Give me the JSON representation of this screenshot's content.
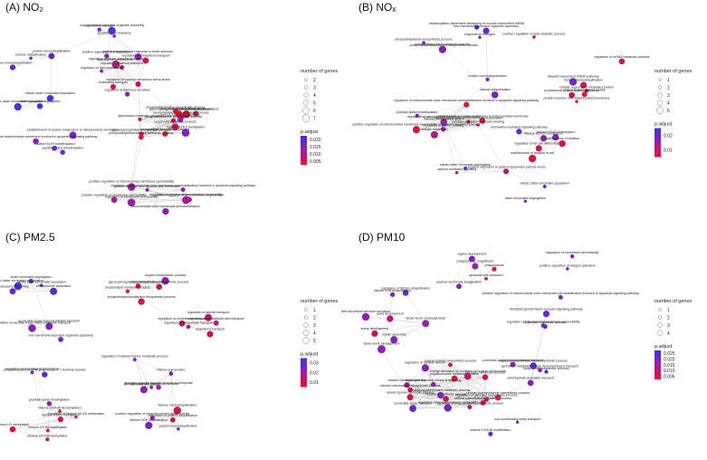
{
  "panels": [
    {
      "id": "A",
      "title": "(A) NO₂",
      "legend": {
        "size_title": "number of genes",
        "size_values": [
          "2",
          "3",
          "4",
          "5",
          "6",
          "7"
        ],
        "color_title": "p.adjust",
        "color_ticks": [
          "0.020",
          "0.015",
          "0.010",
          "0.005"
        ]
      },
      "nodes": [
        {
          "label": "apoptotic cell clearance",
          "c": "#c0185a"
        },
        {
          "label": "response to estrogen",
          "c": "#7b2bd6"
        },
        {
          "label": "non-membrane-bounded organelle assembly",
          "c": "#4830e0"
        },
        {
          "label": "positive regulation of response to biotic stimulus",
          "c": "#9020c0"
        },
        {
          "label": "positive regulation of viral process",
          "c": "#a01bb0"
        },
        {
          "label": "regulation of innate immune response",
          "c": "#c8185a"
        },
        {
          "label": "regulation of steroid transport",
          "c": "#c01865"
        },
        {
          "label": "regulation of lipid localization",
          "c": "#a81a8a"
        },
        {
          "label": "regulation of hormone secretion",
          "c": "#8a22b8"
        },
        {
          "label": "regulation of cholesterol transport",
          "c": "#c81560"
        },
        {
          "label": "regulation of plasma membrane sterol levels",
          "c": "#d0124e"
        },
        {
          "label": "regulation of endocytosis",
          "c": "#9a1ea0"
        },
        {
          "label": "cholesterol transport",
          "c": "#c8155c"
        },
        {
          "label": "protein monoubiquitination",
          "c": "#6228d0"
        },
        {
          "label": "histone monoubiquitination",
          "c": "#7224c8"
        },
        {
          "label": "histone ubiquitination",
          "c": "#5a2ad8"
        },
        {
          "label": "sister chromatid segregation",
          "c": "#3a36e2"
        },
        {
          "label": "mitotic sister chromatid segregation",
          "c": "#4232e0"
        },
        {
          "label": "mitotic sister chromatid separation",
          "c": "#4a30dc"
        },
        {
          "label": "phosphatidylserine metabolic process",
          "c": "#e0103a"
        },
        {
          "label": "glycerophospholipid biosynthetic process",
          "c": "#e8102e"
        },
        {
          "label": "phospholipid metabolic process",
          "c": "#d81440"
        },
        {
          "label": "glycerolipid metabolic process",
          "c": "#e00f36"
        },
        {
          "label": "phosphatidylcholine metabolic process",
          "c": "#e41032"
        },
        {
          "label": "phosphatidylserine biosynthetic process",
          "c": "#d4124a"
        },
        {
          "label": "phosphatidylcholine biosynthetic process",
          "c": "#dc1240"
        },
        {
          "label": "glycerophospholipid biosynthetic process",
          "c": "#e00e30"
        },
        {
          "label": "phospholipid biosynthetic process",
          "c": "#e41030"
        },
        {
          "label": "phosphatidylethanolamine metabolic process",
          "c": "#d0144c"
        },
        {
          "label": "isoprenoid metabolic process",
          "c": "#c8165a"
        },
        {
          "label": "histone H3-K9 methylation",
          "c": "#7a26c0"
        },
        {
          "label": "histone H3-K9 modification",
          "c": "#8822b8"
        },
        {
          "label": "peptidyl-lysine trimethylation",
          "c": "#6a2ac8"
        },
        {
          "label": "histone H3-K9 trimethylation",
          "c": "#5c2cd0"
        },
        {
          "label": "establishment of protein localization to mitochondrial membrane",
          "c": "#7424c4"
        },
        {
          "label": "protein insertion into mitochondrial membrane involved in apoptotic signaling pathway",
          "c": "#8a20b4"
        },
        {
          "label": "positive regulation of mitochondrial membrane permeability",
          "c": "#9a1ea8"
        },
        {
          "label": "regulation of mitochondrial membrane permeability",
          "c": "#a21c9c"
        },
        {
          "label": "regulation of membrane permeability",
          "c": "#9c1ea4"
        },
        {
          "label": "protein insertion into mitochondrial membrane",
          "c": "#8e20b0"
        },
        {
          "label": "positive regulation of membrane permeability",
          "c": "#a41c98"
        },
        {
          "label": "mitochondrial outer membrane permeabilization",
          "c": "#9020ac"
        },
        {
          "label": "regulation of mitochondrial outer membrane permeabilization involved in apoptotic signaling pathway",
          "c": "#8822b4"
        },
        {
          "label": "positive regulation of mitochondrion organization",
          "c": "#b01a8a"
        }
      ]
    },
    {
      "id": "B",
      "title": "(B) NOₓ",
      "legend": {
        "size_title": "number of genes",
        "size_values": [
          "1",
          "2",
          "3",
          "4",
          "5"
        ],
        "color_title": "p.adjust",
        "color_ticks": [
          "0.02",
          "0.01"
        ]
      },
      "nodes": [
        {
          "label": "phosphatidylethanolamine biosynthetic process",
          "c": "#6a28c8"
        },
        {
          "label": "phosphatidylserine biosynthetic process",
          "c": "#7a24c0"
        },
        {
          "label": "phosphatidylcholine metabolic process",
          "c": "#8422b8"
        },
        {
          "label": "response to estrogen",
          "c": "#5a2cd0"
        },
        {
          "label": "deadenylation-dependent decapping of nuclear-transcribed mRNA",
          "c": "#4a30dc"
        },
        {
          "label": "non-membrane-bounded organelle assembly",
          "c": "#6a28c8"
        },
        {
          "label": "positive regulation of lipid catabolic process",
          "c": "#c8165a"
        },
        {
          "label": "regulation of mRNA metabolic process",
          "c": "#c01866"
        },
        {
          "label": "histone ubiquitination",
          "c": "#7a24c0"
        },
        {
          "label": "protein monoubiquitination",
          "c": "#8a20b4"
        },
        {
          "label": "histone monoubiquitination",
          "c": "#d01450"
        },
        {
          "label": "ubiquitin-dependent ERAD pathway",
          "c": "#6a28c8"
        },
        {
          "label": "cellular response to misfolded protein",
          "c": "#d81244"
        },
        {
          "label": "response to misfolded protein",
          "c": "#e0103a"
        },
        {
          "label": "proteasomal protein catabolic process",
          "c": "#c8165a"
        },
        {
          "label": "protein insertion into mitochondrial membrane",
          "c": "#d81440"
        },
        {
          "label": "establishment of protein localization to mitochondrial membrane",
          "c": "#e0103a"
        },
        {
          "label": "regulation of mitochondrial outer membrane permeabilization involved in apoptotic signaling pathway",
          "c": "#e41032"
        },
        {
          "label": "positive regulation of mitochondrial membrane permeability involved in apoptotic process",
          "c": "#dc1240"
        },
        {
          "label": "regulation of mitochondrial membrane permeability",
          "c": "#e00f36"
        },
        {
          "label": "mitochondrial outer membrane permeabilization",
          "c": "#e81030"
        },
        {
          "label": "positive regulation of protein binding",
          "c": "#c0185e"
        },
        {
          "label": "regulation of protein binding",
          "c": "#b41a78"
        },
        {
          "label": "cellular respiration",
          "c": "#a81c8c"
        },
        {
          "label": "peptidyl-lysine trimethylation",
          "c": "#7a24c0"
        },
        {
          "label": "histone H3-K9 trimethylation",
          "c": "#6a28c8"
        },
        {
          "label": "histone H3-K9 methylation",
          "c": "#8422b8"
        },
        {
          "label": "histone H3-K9 modification",
          "c": "#9020ac"
        },
        {
          "label": "regulation of fat cell differentiation",
          "c": "#c8165a"
        },
        {
          "label": "maintenance of location",
          "c": "#d81444"
        },
        {
          "label": "maintenance of location in cell",
          "c": "#e0103a"
        },
        {
          "label": "chemokine-mediated signaling pathway",
          "c": "#5a2cd0"
        },
        {
          "label": "calcium-mediated signaling",
          "c": "#c8165a"
        },
        {
          "label": "negative regulation of plasma lipoprotein particle levels",
          "c": "#b81a70"
        },
        {
          "label": "mitotic sister chromatid segregation",
          "c": "#4a30dc"
        },
        {
          "label": "sister chromatid segregation",
          "c": "#5a2cd0"
        },
        {
          "label": "mitotic sister chromatid separation",
          "c": "#4232e0"
        }
      ]
    },
    {
      "id": "C",
      "title": "(C) PM2.5",
      "legend": {
        "size_title": "number of genes",
        "size_values": [
          "1",
          "2",
          "3",
          "4",
          "5"
        ],
        "color_title": "p.adjust",
        "color_ticks": [
          "0.03",
          "0.02",
          "0.01"
        ]
      },
      "nodes": [
        {
          "label": "mitotic sister chromatid segregation",
          "c": "#4232e0"
        },
        {
          "label": "sister chromatid segregation",
          "c": "#3a36e2"
        },
        {
          "label": "mitotic sister chromatid separation",
          "c": "#4a30dc"
        },
        {
          "label": "chromosome separation",
          "c": "#5a2cd0"
        },
        {
          "label": "proteasome assembly",
          "c": "#6a28c8"
        },
        {
          "label": "nucleotide-sugar transmembrane transport",
          "c": "#7a24c0"
        },
        {
          "label": "pyrimidine nucleotide-sugar transmembrane transport",
          "c": "#8422b8"
        },
        {
          "label": "non-membrane-bounded organelle assembly",
          "c": "#6a28c8"
        },
        {
          "label": "regulation of translational termination",
          "c": "#7a24c0"
        },
        {
          "label": "phosphorylation of RNA polymerase II C-terminal domain",
          "c": "#5a2cd0"
        },
        {
          "label": "heparin biosynthetic process",
          "c": "#9020ac"
        },
        {
          "label": "phosphatidylcholine biosynthetic process",
          "c": "#c8165a"
        },
        {
          "label": "phosphatidylethanolamine biosynthetic process",
          "c": "#d01450"
        },
        {
          "label": "glycerophospholipid biosynthetic process",
          "c": "#e0103a"
        },
        {
          "label": "phospholipid metabolic process",
          "c": "#e41032"
        },
        {
          "label": "regulation of steroid transport",
          "c": "#c01866"
        },
        {
          "label": "regulation of intracellular lipid transport",
          "c": "#b41a78"
        },
        {
          "label": "regulation of cholesterol transport",
          "c": "#c8165a"
        },
        {
          "label": "cholesterol transport",
          "c": "#d01450"
        },
        {
          "label": "regulation of intracellular transport",
          "c": "#a81c8c"
        },
        {
          "label": "regulation of cellular ketone metabolic process",
          "c": "#6a28c8"
        },
        {
          "label": "glucose catabolic process to pyruvate",
          "c": "#7a24c0"
        },
        {
          "label": "NADH regeneration",
          "c": "#8422b8"
        },
        {
          "label": "canonical glycolysis",
          "c": "#9020ac"
        },
        {
          "label": "glycolytic process through glucose-6-phosphate",
          "c": "#a01ea0"
        },
        {
          "label": "histone H2B ubiquitination",
          "c": "#7a24c0"
        },
        {
          "label": "protein monoubiquitination",
          "c": "#6a28c8"
        },
        {
          "label": "histone monoubiquitination",
          "c": "#d01450"
        },
        {
          "label": "regulation of protein ubiquitination",
          "c": "#c8165a"
        },
        {
          "label": "positive regulation of ubiquitin-protein ligase activity",
          "c": "#9020ac"
        },
        {
          "label": "regulation of histone H3-K9 methylation",
          "c": "#b41a78"
        },
        {
          "label": "histone H3-K9 methylation",
          "c": "#c8165a"
        },
        {
          "label": "histone H3-K9 modification",
          "c": "#d01450"
        },
        {
          "label": "peptidyl-lysine trimethylation",
          "c": "#8422b8"
        },
        {
          "label": "histone H3-K36 demethylation",
          "c": "#d81444"
        },
        {
          "label": "histone H4-K20 methylation",
          "c": "#c01866"
        },
        {
          "label": "histone H3 methylation",
          "c": "#e0103a"
        }
      ]
    },
    {
      "id": "D",
      "title": "(D) PM10",
      "legend": {
        "size_title": "number of genes",
        "size_values": [
          "1",
          "2",
          "3",
          "4"
        ],
        "color_title": "p.adjust",
        "color_ticks": [
          "0.025",
          "0.020",
          "0.015",
          "0.010",
          "0.005"
        ]
      },
      "nodes": [
        {
          "label": "phagocytosis",
          "c": "#c8165a"
        },
        {
          "label": "plasma membrane invagination",
          "c": "#9020ac"
        },
        {
          "label": "apoptotic cell clearance",
          "c": "#d01450"
        },
        {
          "label": "phagocytosis, engulfment",
          "c": "#a01ea0"
        },
        {
          "label": "vagina development",
          "c": "#7a24c0"
        },
        {
          "label": "regulation of histone ubiquitination",
          "c": "#6a28c8"
        },
        {
          "label": "histone H2B ubiquitination",
          "c": "#7a24c0"
        },
        {
          "label": "myelin assembly",
          "c": "#8422b8"
        },
        {
          "label": "internal ventral structure formation",
          "c": "#9020ac"
        },
        {
          "label": "facial nerve development",
          "c": "#8a20b4"
        },
        {
          "label": "facial nerve morphogenesis",
          "c": "#9c1ea4"
        },
        {
          "label": "artery development",
          "c": "#c8165a"
        },
        {
          "label": "aorta development",
          "c": "#b41a78"
        },
        {
          "label": "heparin metabolic process",
          "c": "#a81c8c"
        },
        {
          "label": "cellular carbohydrate biosynthetic process",
          "c": "#d81444"
        },
        {
          "label": "heparin biosynthetic process",
          "c": "#c01866"
        },
        {
          "label": "cellular carbohydrate metabolic process",
          "c": "#e0103a"
        },
        {
          "label": "polysaccharide metabolic process",
          "c": "#e41032"
        },
        {
          "label": "polysaccharide biosynthetic process",
          "c": "#e81030"
        },
        {
          "label": "cellular polysaccharide biosynthetic process",
          "c": "#d81444"
        },
        {
          "label": "cellular glucan metabolic process",
          "c": "#c8165a"
        },
        {
          "label": "glycogen metabolic process",
          "c": "#d01450"
        },
        {
          "label": "regulation of glycogen biosynthetic process",
          "c": "#b41a78"
        },
        {
          "label": "regulation of polysaccharide metabolic process",
          "c": "#a81c8c"
        },
        {
          "label": "regulation of nuclear division",
          "c": "#9020ac"
        },
        {
          "label": "regulation of protein kinase B signaling",
          "c": "#8422b8"
        },
        {
          "label": "regulation of gene expression, epigenetic",
          "c": "#7a24c0"
        },
        {
          "label": "nucleotide-sugar transport",
          "c": "#6a28c8"
        },
        {
          "label": "energy derivation by oxidation of organic compounds",
          "c": "#c01866"
        },
        {
          "label": "S-adenosylmethionine metabolic process",
          "c": "#7a24c0"
        },
        {
          "label": "histone H3-K36 modification",
          "c": "#5a2cd0"
        },
        {
          "label": "non-coordinating entity transport",
          "c": "#4a30dc"
        },
        {
          "label": "positive regulation of integrin activation",
          "c": "#6a28c8"
        },
        {
          "label": "regulation of membrane permeability",
          "c": "#9020ac"
        },
        {
          "label": "regulation of mitochondrial membrane permeability",
          "c": "#8422b8"
        },
        {
          "label": "positive regulation of mitochondrial outer membrane permeabilization involved in apoptotic signaling pathway",
          "c": "#7a24c0"
        },
        {
          "label": "fibroblast growth factor receptor signaling pathway",
          "c": "#6a28c8"
        },
        {
          "label": "lipoprotein metabolic process",
          "c": "#5a2cd0"
        },
        {
          "label": "lipoprotein biosynthetic process",
          "c": "#4a30dc"
        },
        {
          "label": "phosphatidylethanolamine biosynthetic process",
          "c": "#6a28c8"
        },
        {
          "label": "carbohydrate derivative transport",
          "c": "#7a24c0"
        },
        {
          "label": "nucleotide-sugar transmembrane transport",
          "c": "#8422b8"
        },
        {
          "label": "pyrimidine nucleotide-sugar transmembrane transport",
          "c": "#9020ac"
        }
      ]
    }
  ]
}
